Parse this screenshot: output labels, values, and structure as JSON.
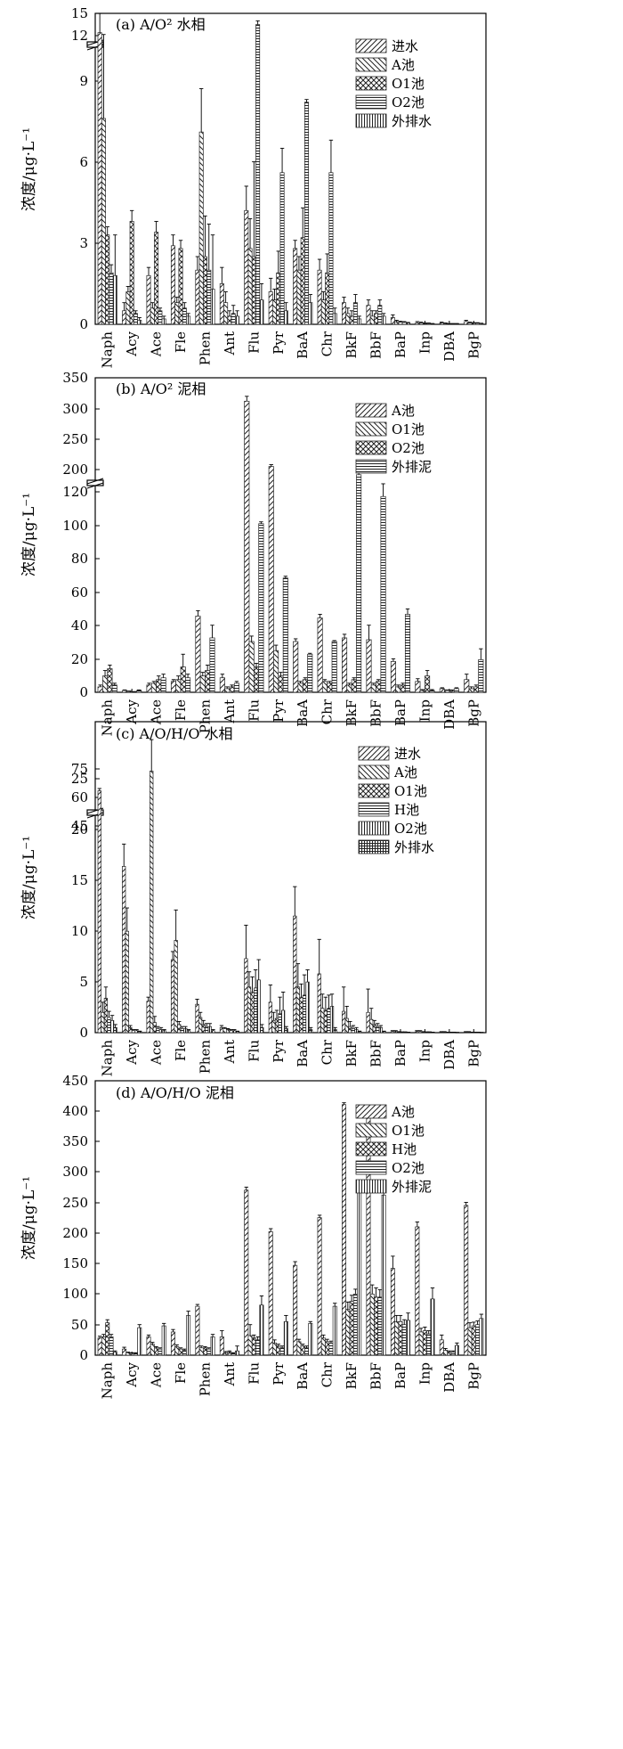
{
  "chart_data": [
    {
      "type": "bar",
      "title": "(a) A/O² 水相",
      "ylabel": "浓度/μg·L⁻¹",
      "categories": [
        "Naph",
        "Acy",
        "Ace",
        "Fle",
        "Phen",
        "Ant",
        "Flu",
        "Pyr",
        "BaA",
        "Chr",
        "BkF",
        "BbF",
        "BaP",
        "Inp",
        "DBA",
        "BgP"
      ],
      "yticks": [
        "0",
        "3",
        "6",
        "9",
        "12",
        "15"
      ],
      "axis_break": {
        "from": 11.2,
        "to": 12
      },
      "ylim": [
        0,
        15
      ],
      "grid": false,
      "legend_position": "top-right",
      "series": [
        {
          "name": "进水",
          "pattern": "diag",
          "values": [
            12.4,
            0.5,
            1.8,
            2.9,
            2.0,
            1.5,
            4.2,
            1.2,
            2.8,
            2.0,
            0.8,
            0.7,
            0.25,
            0.05,
            0.05,
            0.1
          ],
          "errors": [
            2.6,
            0.3,
            0.3,
            0.4,
            0.5,
            0.6,
            0.9,
            0.5,
            0.3,
            0.4,
            0.2,
            0.2,
            0.1,
            0.05,
            0.03,
            0.05
          ]
        },
        {
          "name": "A池",
          "pattern": "backdiag",
          "values": [
            7.6,
            1.2,
            0.6,
            0.8,
            7.1,
            0.8,
            2.8,
            0.9,
            2.0,
            0.9,
            0.4,
            0.3,
            0.1,
            0.05,
            0.03,
            0.05
          ],
          "errors": [
            3.1,
            0.2,
            0.2,
            0.2,
            1.6,
            0.4,
            1.1,
            0.4,
            0.5,
            0.3,
            0.2,
            0.2,
            0.05,
            0.03,
            0.02,
            0.03
          ]
        },
        {
          "name": "O1池",
          "pattern": "cross",
          "values": [
            3.3,
            3.8,
            3.4,
            2.8,
            2.5,
            0.3,
            2.5,
            1.9,
            3.2,
            1.9,
            0.3,
            0.4,
            0.08,
            0.03,
            0.02,
            0.04
          ],
          "errors": [
            0.3,
            0.4,
            0.4,
            0.3,
            1.5,
            0.2,
            3.5,
            0.8,
            1.1,
            0.7,
            0.2,
            0.1,
            0.03,
            0.02,
            0.01,
            0.02
          ]
        },
        {
          "name": "O2池",
          "pattern": "horiz",
          "values": [
            1.9,
            0.4,
            0.5,
            0.6,
            2.0,
            0.4,
            13.5,
            5.6,
            8.2,
            5.6,
            0.8,
            0.7,
            0.07,
            0.03,
            0.02,
            0.04
          ],
          "errors": [
            0.3,
            0.1,
            0.1,
            0.2,
            1.7,
            0.3,
            0.5,
            0.9,
            0.1,
            1.2,
            0.3,
            0.2,
            0.03,
            0.02,
            0.01,
            0.02
          ]
        },
        {
          "name": "外排水",
          "pattern": "vert",
          "values": [
            1.8,
            0.15,
            0.2,
            0.3,
            1.3,
            0.3,
            0.9,
            0.5,
            0.8,
            0.4,
            0.2,
            0.3,
            0.05,
            0.02,
            0.02,
            0.03
          ],
          "errors": [
            1.5,
            0.1,
            0.1,
            0.1,
            2.0,
            0.2,
            0.6,
            0.3,
            0.3,
            0.2,
            0.1,
            0.1,
            0.02,
            0.01,
            0.01,
            0.01
          ]
        }
      ]
    },
    {
      "type": "bar",
      "title": "(b) A/O² 泥相",
      "ylabel": "浓度/μg·L⁻¹",
      "categories": [
        "Naph",
        "Acy",
        "Ace",
        "Fle",
        "Phen",
        "Ant",
        "Flu",
        "Pyr",
        "BaA",
        "Chr",
        "BkF",
        "BbF",
        "BaP",
        "Inp",
        "DBA",
        "BgP"
      ],
      "yticks": [
        "0",
        "20",
        "40",
        "60",
        "80",
        "100",
        "120",
        "200",
        "250",
        "300",
        "350"
      ],
      "axis_break": {
        "from": 128,
        "to": 200
      },
      "ylim": [
        0,
        350
      ],
      "grid": false,
      "legend_position": "top-right",
      "series": [
        {
          "name": "A池",
          "pattern": "diag",
          "values": [
            3,
            1,
            4,
            6,
            42,
            8,
            312,
            205,
            28,
            41,
            30,
            29,
            17,
            6,
            2,
            7
          ],
          "errors": [
            1,
            0.3,
            1,
            1,
            3,
            2,
            8,
            3,
            1.5,
            2,
            2,
            8,
            1.5,
            1.5,
            0.5,
            3
          ]
        },
        {
          "name": "O1池",
          "pattern": "backdiag",
          "values": [
            9,
            0.5,
            5,
            7,
            9,
            2,
            28,
            23,
            5,
            6,
            4,
            4,
            3,
            1,
            1,
            2
          ],
          "errors": [
            3,
            0.2,
            1,
            2,
            2,
            1,
            3,
            3,
            1,
            1,
            1,
            1,
            1,
            0.5,
            0.3,
            1
          ]
        },
        {
          "name": "O2池",
          "pattern": "cross",
          "values": [
            13,
            0.3,
            7,
            14,
            12,
            3,
            14,
            9,
            7,
            5,
            7,
            6,
            4,
            9,
            1,
            3
          ],
          "errors": [
            2,
            0.1,
            2,
            7,
            3,
            1,
            2,
            2,
            1,
            1,
            1,
            1,
            1,
            3,
            0.3,
            1
          ]
        },
        {
          "name": "外排泥",
          "pattern": "horiz",
          "values": [
            4,
            1,
            8,
            8,
            30,
            5,
            93,
            63,
            21,
            28,
            120,
            108,
            43,
            1,
            2,
            18
          ],
          "errors": [
            1,
            0.3,
            2,
            2,
            7,
            1,
            1,
            1,
            0.5,
            0.5,
            8,
            7,
            3,
            0.5,
            0.5,
            6
          ]
        }
      ]
    },
    {
      "type": "bar",
      "title": "(c) A/O/H/O 水相",
      "ylabel": "浓度/μg·L⁻¹",
      "categories": [
        "Naph",
        "Acy",
        "Ace",
        "Fle",
        "Phen",
        "Ant",
        "Flu",
        "Pyr",
        "BaA",
        "Chr",
        "BkF",
        "BbF",
        "BaP",
        "Inp",
        "DBA",
        "BgP"
      ],
      "yticks": [
        "0",
        "5",
        "10",
        "15",
        "20",
        "25",
        "45",
        "60",
        "75"
      ],
      "axis_break": {
        "from": 29,
        "to": 40
      },
      "ylim": [
        0,
        75
      ],
      "grid": false,
      "legend_position": "top-right",
      "series": [
        {
          "name": "进水",
          "pattern": "diag",
          "values": [
            63.5,
            16.4,
            3.1,
            7.2,
            2.8,
            0.5,
            7.3,
            3.0,
            11.5,
            5.8,
            2.1,
            2.0,
            0.1,
            0.1,
            0.05,
            0.05
          ],
          "errors": [
            1.2,
            2.2,
            0.4,
            0.8,
            0.5,
            0.2,
            3.3,
            1.7,
            2.9,
            3.4,
            2.4,
            2.3,
            0.1,
            0.1,
            0.05,
            0.05
          ]
        },
        {
          "name": "A池",
          "pattern": "backdiag",
          "values": [
            2.0,
            10.0,
            25.8,
            9.1,
            1.5,
            0.4,
            4.5,
            1.2,
            4.5,
            2.4,
            1.4,
            1.3,
            0.1,
            0.1,
            0.05,
            0.05
          ],
          "errors": [
            1.0,
            2.3,
            3.1,
            3.0,
            0.5,
            0.1,
            1.5,
            0.8,
            2.3,
            1.4,
            1.2,
            1.1,
            0.1,
            0.1,
            0.05,
            0.05
          ]
        },
        {
          "name": "O1池",
          "pattern": "cross",
          "values": [
            3.4,
            0.5,
            1.0,
            0.8,
            0.8,
            0.3,
            4.0,
            1.4,
            3.5,
            2.2,
            0.6,
            0.8,
            0.05,
            0.05,
            0.03,
            0.03
          ],
          "errors": [
            1.1,
            0.2,
            0.6,
            0.3,
            0.4,
            0.1,
            1.5,
            0.8,
            1.3,
            1.3,
            0.5,
            0.4,
            0.05,
            0.05,
            0.02,
            0.02
          ]
        },
        {
          "name": "H池",
          "pattern": "horiz",
          "values": [
            1.5,
            0.2,
            0.4,
            0.4,
            0.6,
            0.2,
            4.4,
            1.9,
            3.7,
            2.4,
            0.4,
            0.6,
            0.05,
            0.05,
            0.03,
            0.03
          ],
          "errors": [
            0.6,
            0.1,
            0.2,
            0.2,
            0.3,
            0.1,
            1.8,
            1.6,
            2.0,
            1.3,
            0.3,
            0.3,
            0.03,
            0.03,
            0.02,
            0.02
          ]
        },
        {
          "name": "O2池",
          "pattern": "vert",
          "values": [
            1.2,
            0.2,
            0.3,
            0.4,
            0.6,
            0.2,
            5.2,
            2.2,
            5.0,
            2.6,
            0.3,
            0.5,
            0.05,
            0.05,
            0.03,
            0.03
          ],
          "errors": [
            0.5,
            0.1,
            0.2,
            0.2,
            0.3,
            0.1,
            2.0,
            1.8,
            1.2,
            1.2,
            0.2,
            0.2,
            0.03,
            0.03,
            0.02,
            0.02
          ]
        },
        {
          "name": "外排水",
          "pattern": "grid",
          "values": [
            0.5,
            0.1,
            0.2,
            0.2,
            0.2,
            0.1,
            0.5,
            0.4,
            0.3,
            0.3,
            0.1,
            0.1,
            0.03,
            0.03,
            0.02,
            0.02
          ],
          "errors": [
            0.3,
            0.05,
            0.1,
            0.1,
            0.1,
            0.05,
            0.3,
            0.2,
            0.2,
            0.2,
            0.05,
            0.05,
            0.02,
            0.02,
            0.01,
            0.01
          ]
        }
      ]
    },
    {
      "type": "bar",
      "title": "(d) A/O/H/O 泥相",
      "ylabel": "浓度/μg·L⁻¹",
      "categories": [
        "Naph",
        "Acy",
        "Ace",
        "Fle",
        "Phen",
        "Ant",
        "Flu",
        "Pyr",
        "BaA",
        "Chr",
        "BkF",
        "BbF",
        "BaP",
        "Inp",
        "DBA",
        "BgP"
      ],
      "yticks": [
        "0",
        "50",
        "100",
        "150",
        "200",
        "250",
        "300",
        "350",
        "400",
        "450"
      ],
      "ylim": [
        0,
        450
      ],
      "grid": false,
      "legend_position": "top-right",
      "series": [
        {
          "name": "A池",
          "pattern": "diag",
          "values": [
            28,
            10,
            30,
            38,
            80,
            30,
            270,
            202,
            147,
            225,
            410,
            390,
            142,
            210,
            25,
            245
          ],
          "errors": [
            3,
            3,
            3,
            4,
            3,
            10,
            5,
            5,
            6,
            4,
            3,
            8,
            20,
            8,
            8,
            5
          ]
        },
        {
          "name": "O1池",
          "pattern": "backdiag",
          "values": [
            30,
            4,
            18,
            14,
            12,
            4,
            32,
            20,
            22,
            28,
            75,
            100,
            55,
            38,
            8,
            45
          ],
          "errors": [
            4,
            1,
            3,
            3,
            3,
            2,
            18,
            5,
            4,
            5,
            12,
            15,
            10,
            6,
            3,
            8
          ]
        },
        {
          "name": "H池",
          "pattern": "cross",
          "values": [
            53,
            3,
            12,
            10,
            12,
            5,
            28,
            15,
            15,
            22,
            88,
            95,
            55,
            40,
            5,
            48
          ],
          "errors": [
            5,
            1,
            2,
            2,
            2,
            2,
            5,
            3,
            3,
            4,
            10,
            15,
            10,
            6,
            2,
            6
          ]
        },
        {
          "name": "O2池",
          "pattern": "horiz",
          "values": [
            30,
            3,
            10,
            8,
            10,
            3,
            25,
            12,
            12,
            20,
            100,
            95,
            50,
            35,
            5,
            50
          ],
          "errors": [
            4,
            1,
            2,
            2,
            2,
            1,
            5,
            3,
            3,
            3,
            8,
            12,
            8,
            5,
            2,
            6
          ]
        },
        {
          "name": "外排泥",
          "pattern": "vert",
          "values": [
            5,
            45,
            48,
            65,
            30,
            7,
            82,
            55,
            52,
            80,
            275,
            262,
            57,
            92,
            16,
            60
          ],
          "errors": [
            2,
            5,
            4,
            7,
            4,
            8,
            15,
            10,
            3,
            5,
            8,
            15,
            12,
            18,
            4,
            7
          ]
        }
      ]
    }
  ]
}
